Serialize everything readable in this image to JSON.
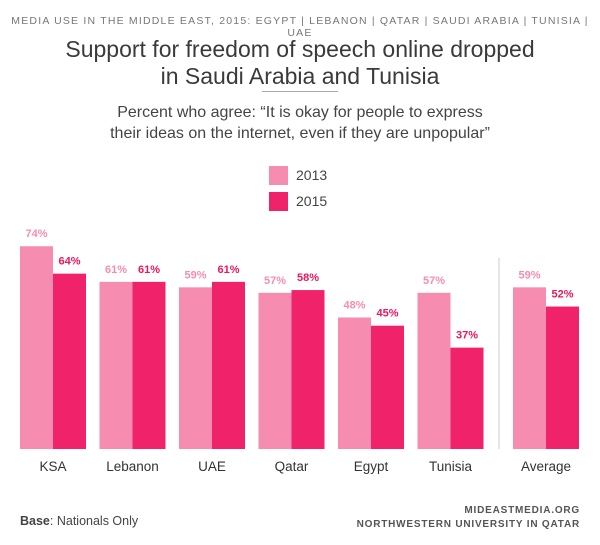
{
  "kicker": "MEDIA USE IN THE MIDDLE EAST, 2015: EGYPT | LEBANON | QATAR | SAUDI ARABIA | TUNISIA | UAE",
  "title_line1": "Support for freedom of speech online dropped",
  "title_line2": "in Saudi Arabia and Tunisia",
  "subtitle_line1": "Percent who agree: “It is okay for people to express",
  "subtitle_line2": "their ideas on the internet, even if they are unpopular”",
  "base_label": "Base",
  "base_text": ": Nationals Only",
  "source_line1": "MIDEASTMEDIA.ORG",
  "source_line2": "NORTHWESTERN UNIVERSITY IN QATAR",
  "colors": {
    "s2013": "#f68db1",
    "s2015": "#f0226a",
    "label2013": "#f68db1",
    "label2015": "#e8175e",
    "separator": "#cccccc"
  },
  "chart_data": {
    "type": "bar",
    "title": "Support for freedom of speech online dropped in Saudi Arabia and Tunisia",
    "subtitle": "Percent who agree: “It is okay for people to express their ideas on the internet, even if they are unpopular”",
    "categories": [
      "KSA",
      "Lebanon",
      "UAE",
      "Qatar",
      "Egypt",
      "Tunisia",
      "Average"
    ],
    "series": [
      {
        "name": "2013",
        "values": [
          74,
          61,
          59,
          57,
          48,
          57,
          59
        ]
      },
      {
        "name": "2015",
        "values": [
          64,
          61,
          61,
          58,
          45,
          37,
          52
        ]
      }
    ],
    "value_suffix": "%",
    "ylim": [
      0,
      100
    ],
    "grid": false,
    "legend_position": "top-center",
    "separator_before": "Average"
  }
}
